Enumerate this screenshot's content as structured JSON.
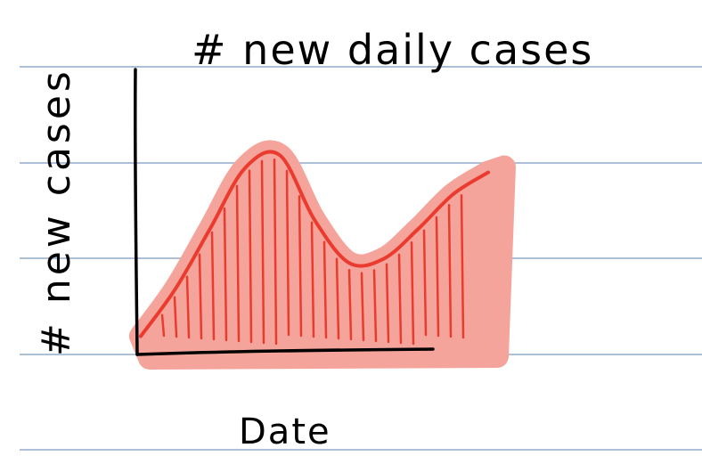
{
  "chart_data": {
    "type": "area",
    "title": "# new daily cases",
    "xlabel": "Date",
    "ylabel": "# new cases",
    "x": [
      0,
      1,
      2,
      3,
      4,
      5,
      6,
      7,
      8,
      9,
      10
    ],
    "y": [
      3,
      14,
      28,
      42,
      45,
      30,
      20,
      21,
      28,
      36,
      41
    ],
    "xlim": [
      0,
      10
    ],
    "ylim": [
      0,
      50
    ],
    "grid": false,
    "style": "hand-drawn sketch on lined notebook paper",
    "colors": {
      "area_fill": "#f5a49b",
      "line": "#ea3b2e",
      "hatch": "#ea3b2e",
      "axis": "#000000",
      "ruled_lines": "#aebfd8"
    }
  }
}
